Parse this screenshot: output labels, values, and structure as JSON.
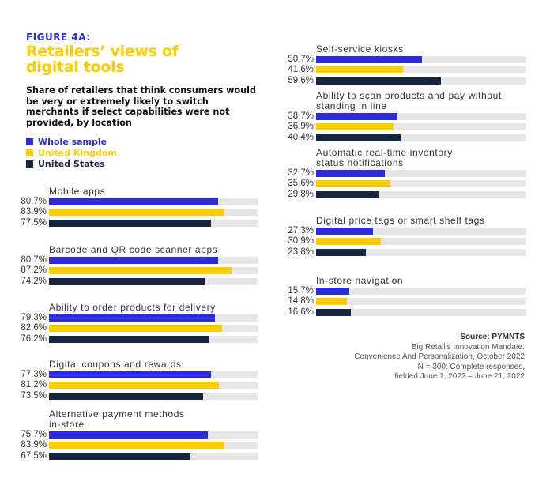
{
  "figure_label": "FIGURE 4A:",
  "title": "Retailers’ views of digital tools",
  "subtitle": "Share of retailers that think consumers would be very or extremely likely to switch merchants if select capabilities were not provided, by location",
  "colors": {
    "whole_sample": "#2B2BD9",
    "united_kingdom": "#FFCC00",
    "united_states": "#16253F",
    "track": "#E6E6E6"
  },
  "legend": [
    {
      "label": "Whole sample",
      "color": "#2B2BD9"
    },
    {
      "label": "United Kingdom",
      "color": "#FFCC00"
    },
    {
      "label": "United States",
      "color": "#16253F"
    }
  ],
  "source": {
    "heading": "Source: PYMNTS",
    "lines": [
      "Big Retail’s Innovation Mandate:",
      "Convenience And Personalization, October 2022",
      "N = 300: Complete responses,",
      "fielded June 1, 2022 – June 21, 2022"
    ]
  },
  "chart_data": {
    "type": "bar",
    "orientation": "horizontal",
    "title": "Retailers’ views of digital tools",
    "xlim": [
      0,
      100
    ],
    "unit": "%",
    "series_names": [
      "Whole sample",
      "United Kingdom",
      "United States"
    ],
    "categories": [
      "Mobile apps",
      "Barcode and QR code scanner apps",
      "Ability to order products for delivery",
      "Digital coupons and rewards",
      "Alternative payment methods\nin-store",
      "Self-service kiosks",
      "Ability to scan products and pay without\nstanding in line",
      "Automatic real-time inventory\nstatus notifications",
      "Digital price tags or smart shelf tags",
      "In-store navigation"
    ],
    "series": [
      {
        "name": "Whole sample",
        "values": [
          80.7,
          80.7,
          79.3,
          77.3,
          75.7,
          50.7,
          38.7,
          32.7,
          27.3,
          15.7
        ]
      },
      {
        "name": "United Kingdom",
        "values": [
          83.9,
          87.2,
          82.6,
          81.2,
          83.9,
          41.6,
          36.9,
          35.6,
          30.9,
          14.8
        ]
      },
      {
        "name": "United States",
        "values": [
          77.5,
          74.2,
          76.2,
          73.5,
          67.5,
          59.6,
          40.4,
          29.8,
          23.8,
          16.6
        ]
      }
    ],
    "value_labels": [
      [
        "80.7%",
        "83.9%",
        "77.5%"
      ],
      [
        "80.7%",
        "87.2%",
        "74.2%"
      ],
      [
        "79.3%",
        "82.6%",
        "76.2%"
      ],
      [
        "77.3%",
        "81.2%",
        "73.5%"
      ],
      [
        "75.7%",
        "83.9%",
        "67.5%"
      ],
      [
        "50.7%",
        "41.6%",
        "59.6%"
      ],
      [
        "38.7%",
        "36.9%",
        "40.4%"
      ],
      [
        "32.7%",
        "35.6%",
        "29.8%"
      ],
      [
        "27.3%",
        "30.9%",
        "23.8%"
      ],
      [
        "15.7%",
        "14.8%",
        "16.6%"
      ]
    ]
  }
}
